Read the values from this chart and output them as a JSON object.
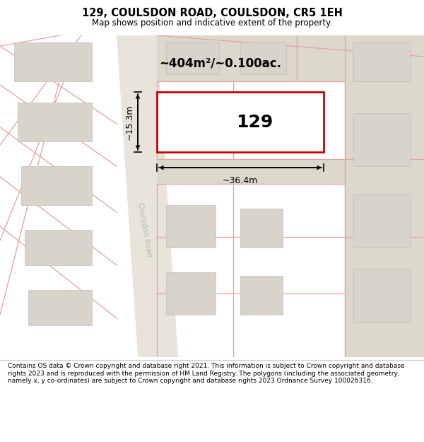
{
  "title": "129, COULSDON ROAD, COULSDON, CR5 1EH",
  "subtitle": "Map shows position and indicative extent of the property.",
  "footer": "Contains OS data © Crown copyright and database right 2021. This information is subject to Crown copyright and database rights 2023 and is reproduced with the permission of HM Land Registry. The polygons (including the associated geometry, namely x, y co-ordinates) are subject to Crown copyright and database rights 2023 Ordnance Survey 100026316.",
  "property_label": "129",
  "area_label": "~404m²/~0.100ac.",
  "width_label": "~36.4m",
  "height_label": "~15.3m",
  "road_label": "Coulsdon Road",
  "map_bg": "#f5f2ee",
  "road_fill": "#e8e3db",
  "plot_fill": "#ffffff",
  "plot_border": "#cc0000",
  "building_fill": "#d8d4cc",
  "building_edge": "#c0bdb5",
  "road_line_color": "#e8a0a0",
  "tan_strip_color": "#ddd8cc",
  "dim_line_color": "#000000",
  "text_color": "#000000",
  "road_label_color": "#bbbbbb",
  "footer_text_size": 6.5,
  "title_text_size": 10.5,
  "subtitle_text_size": 8.5
}
